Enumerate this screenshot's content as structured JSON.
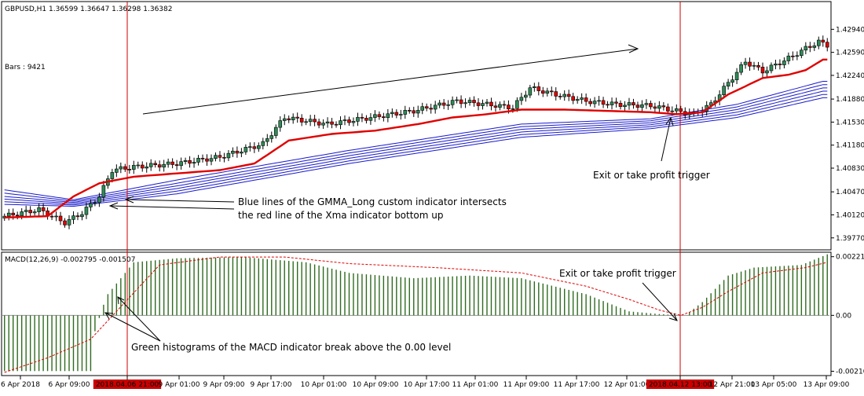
{
  "chart_data": [
    {
      "type": "candlestick",
      "header": "GBPUSD,H1  1.36599 1.36647 1.36298 1.36382",
      "info_label": "Bars : 9421",
      "ylim": [
        1.396,
        1.4335
      ],
      "y_ticks": [
        "1.42940",
        "1.42590",
        "1.42240",
        "1.41880",
        "1.41530",
        "1.41180",
        "1.40830",
        "1.40470",
        "1.40120",
        "1.39770"
      ],
      "x_ticks": [
        "6 Apr 2018",
        "6 Apr 09:00",
        "2018.04.06 21:00",
        "9 Apr 01:00",
        "9 Apr 09:00",
        "9 Apr 17:00",
        "10 Apr 01:00",
        "10 Apr 09:00",
        "10 Apr 17:00",
        "11 Apr 01:00",
        "11 Apr 09:00",
        "11 Apr 17:00",
        "12 Apr 01:00",
        "2018.04.12 13:00",
        "12 Apr 21:00",
        "13 Apr 05:00",
        "13 Apr 09:00"
      ],
      "highlighted_x_ticks": [
        "2018.04.06 21:00",
        "2018.04.12 13:00"
      ],
      "candle_close_path": [
        [
          0,
          1.401
        ],
        [
          8,
          1.402
        ],
        [
          14,
          1.4
        ],
        [
          18,
          1.4015
        ],
        [
          22,
          1.404
        ],
        [
          25,
          1.408
        ],
        [
          30,
          1.4085
        ],
        [
          40,
          1.409
        ],
        [
          50,
          1.41
        ],
        [
          60,
          1.412
        ],
        [
          65,
          1.416
        ],
        [
          75,
          1.415
        ],
        [
          85,
          1.416
        ],
        [
          95,
          1.417
        ],
        [
          105,
          1.4185
        ],
        [
          112,
          1.418
        ],
        [
          118,
          1.4175
        ],
        [
          122,
          1.4205
        ],
        [
          128,
          1.4195
        ],
        [
          135,
          1.4185
        ],
        [
          142,
          1.418
        ],
        [
          150,
          1.4178
        ],
        [
          156,
          1.417
        ],
        [
          160,
          1.4165
        ],
        [
          164,
          1.418
        ],
        [
          172,
          1.4245
        ],
        [
          176,
          1.423
        ],
        [
          182,
          1.425
        ],
        [
          186,
          1.4265
        ],
        [
          189,
          1.4275
        ],
        [
          191,
          1.427
        ]
      ],
      "xma_line": [
        [
          0,
          1.4008
        ],
        [
          10,
          1.401
        ],
        [
          16,
          1.404
        ],
        [
          22,
          1.406
        ],
        [
          30,
          1.407
        ],
        [
          40,
          1.4075
        ],
        [
          50,
          1.408
        ],
        [
          58,
          1.409
        ],
        [
          66,
          1.4125
        ],
        [
          76,
          1.4135
        ],
        [
          86,
          1.414
        ],
        [
          96,
          1.415
        ],
        [
          104,
          1.416
        ],
        [
          112,
          1.4165
        ],
        [
          120,
          1.4172
        ],
        [
          130,
          1.4172
        ],
        [
          140,
          1.417
        ],
        [
          150,
          1.4168
        ],
        [
          156,
          1.4165
        ],
        [
          162,
          1.4168
        ],
        [
          168,
          1.4195
        ],
        [
          176,
          1.422
        ],
        [
          182,
          1.4225
        ],
        [
          186,
          1.4232
        ],
        [
          190,
          1.4248
        ]
      ],
      "gmma_long_lines": [
        [
          [
            0,
            1.405
          ],
          [
            16,
            1.4035
          ],
          [
            40,
            1.4065
          ],
          [
            80,
            1.411
          ],
          [
            120,
            1.415
          ],
          [
            150,
            1.4158
          ],
          [
            170,
            1.418
          ],
          [
            190,
            1.4215
          ]
        ],
        [
          [
            0,
            1.4045
          ],
          [
            16,
            1.4033
          ],
          [
            40,
            1.406
          ],
          [
            80,
            1.4106
          ],
          [
            120,
            1.4146
          ],
          [
            150,
            1.4155
          ],
          [
            170,
            1.4176
          ],
          [
            190,
            1.421
          ]
        ],
        [
          [
            0,
            1.404
          ],
          [
            16,
            1.4031
          ],
          [
            40,
            1.4056
          ],
          [
            80,
            1.4102
          ],
          [
            120,
            1.4142
          ],
          [
            150,
            1.4152
          ],
          [
            170,
            1.4172
          ],
          [
            190,
            1.4205
          ]
        ],
        [
          [
            0,
            1.4036
          ],
          [
            16,
            1.4029
          ],
          [
            40,
            1.4052
          ],
          [
            80,
            1.4098
          ],
          [
            120,
            1.4138
          ],
          [
            150,
            1.4149
          ],
          [
            170,
            1.4168
          ],
          [
            190,
            1.42
          ]
        ],
        [
          [
            0,
            1.4032
          ],
          [
            16,
            1.4027
          ],
          [
            40,
            1.4048
          ],
          [
            80,
            1.4094
          ],
          [
            120,
            1.4134
          ],
          [
            150,
            1.4146
          ],
          [
            170,
            1.4164
          ],
          [
            190,
            1.4195
          ]
        ],
        [
          [
            0,
            1.4028
          ],
          [
            16,
            1.4025
          ],
          [
            40,
            1.4044
          ],
          [
            80,
            1.409
          ],
          [
            120,
            1.413
          ],
          [
            150,
            1.4143
          ],
          [
            170,
            1.416
          ],
          [
            190,
            1.419
          ]
        ]
      ],
      "colors": {
        "bull": "#2e8b57",
        "bear": "#e00000",
        "xma": "#e00000",
        "gmma": "#1a1acc",
        "marker": "#cc0000"
      }
    },
    {
      "type": "histogram",
      "label": "MACD(12,26,9) -0.002795 -0.001507",
      "ylim": [
        -0.00224,
        0.00235
      ],
      "y_ticks": [
        "0.002211",
        "0.00",
        "-0.002107"
      ],
      "histogram_path": [
        [
          0,
          -0.0021
        ],
        [
          20,
          -0.0021
        ],
        [
          21,
          -0.0006
        ],
        [
          22,
          -0.0001
        ],
        [
          23,
          0.0004
        ],
        [
          24,
          0.0008
        ],
        [
          26,
          0.0012
        ],
        [
          30,
          0.002
        ],
        [
          40,
          0.00215
        ],
        [
          55,
          0.0022
        ],
        [
          70,
          0.002
        ],
        [
          80,
          0.0016
        ],
        [
          95,
          0.0014
        ],
        [
          108,
          0.0015
        ],
        [
          120,
          0.0014
        ],
        [
          135,
          0.0008
        ],
        [
          145,
          0.00015
        ],
        [
          152,
          5e-05
        ],
        [
          157,
          0.0
        ],
        [
          158,
          0.0
        ],
        [
          162,
          0.0005
        ],
        [
          168,
          0.0015
        ],
        [
          174,
          0.0018
        ],
        [
          185,
          0.0019
        ],
        [
          191,
          0.0023
        ]
      ],
      "signal_path": [
        [
          0,
          -0.00215
        ],
        [
          10,
          -0.0016
        ],
        [
          20,
          -0.0009
        ],
        [
          28,
          0.0005
        ],
        [
          36,
          0.0019
        ],
        [
          50,
          0.0022
        ],
        [
          65,
          0.0022
        ],
        [
          80,
          0.00195
        ],
        [
          100,
          0.0018
        ],
        [
          120,
          0.0016
        ],
        [
          135,
          0.0011
        ],
        [
          145,
          0.0006
        ],
        [
          152,
          0.0002
        ],
        [
          157,
          0.0
        ],
        [
          162,
          0.0003
        ],
        [
          168,
          0.0009
        ],
        [
          176,
          0.0016
        ],
        [
          186,
          0.0018
        ],
        [
          191,
          0.002
        ]
      ],
      "colors": {
        "hist": "#2e6b1e",
        "signal": "#e00000",
        "zero": "#909090"
      }
    }
  ],
  "annotations": {
    "gmma_cross_line1": "Blue lines of the GMMA_Long custom indicator intersects",
    "gmma_cross_line2": "the red line of the Xma indicator bottom up",
    "exit_top": "Exit or take profit trigger",
    "exit_macd": "Exit or take profit trigger",
    "macd_break": "Green histograms of the MACD indicator break above the 0.00 level"
  }
}
